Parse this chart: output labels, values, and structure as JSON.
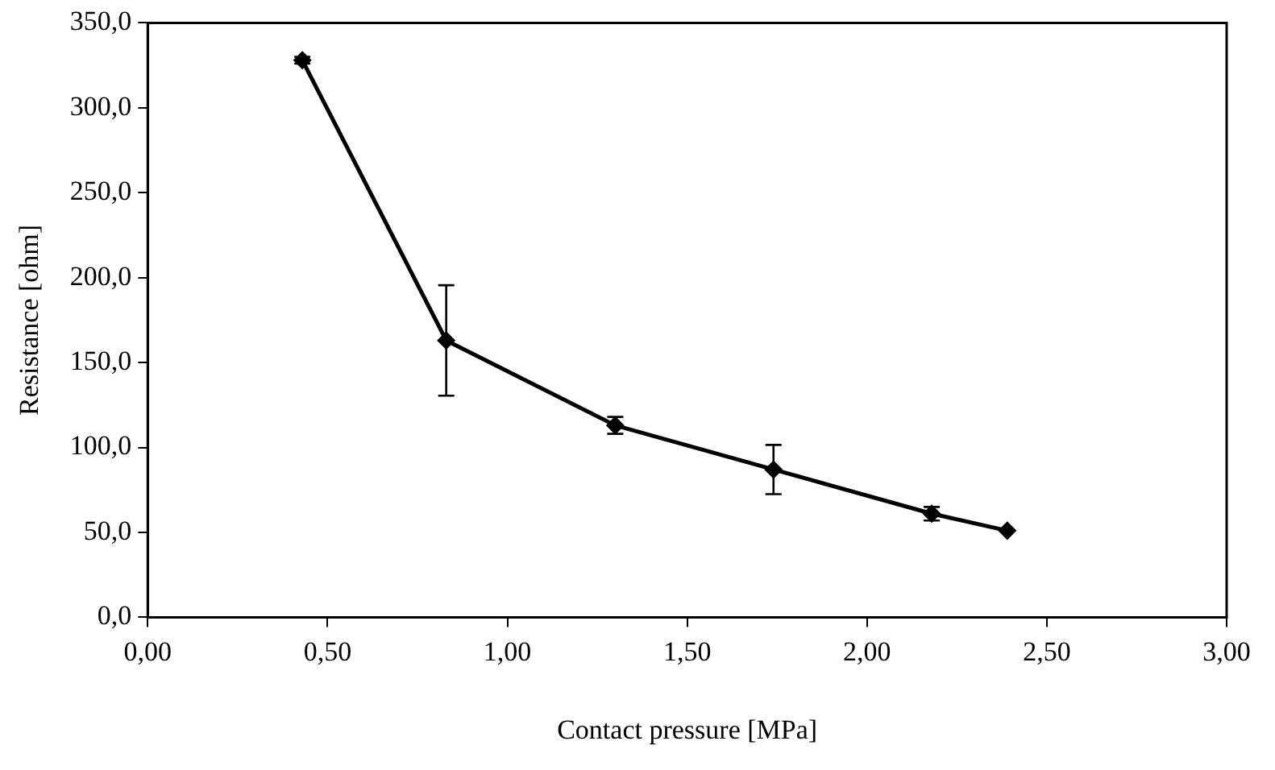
{
  "chart_data": {
    "type": "line",
    "xlabel": "Contact pressure [MPa]",
    "ylabel": "Resistance [ohm]",
    "x": [
      0.43,
      0.83,
      1.3,
      1.74,
      2.18,
      2.39
    ],
    "series": [
      {
        "color": "#000000",
        "values": [
          328,
          163,
          113,
          87,
          61,
          51
        ],
        "errors": [
          2,
          32.5,
          5,
          14.5,
          4,
          null
        ]
      }
    ],
    "xlim": [
      0,
      3
    ],
    "xticks": [
      {
        "value": 0,
        "label": "0,00"
      },
      {
        "value": 0.5,
        "label": "0,50"
      },
      {
        "value": 1,
        "label": "1,00"
      },
      {
        "value": 1.5,
        "label": "1,50"
      },
      {
        "value": 2,
        "label": "2,00"
      },
      {
        "value": 2.5,
        "label": "2,50"
      },
      {
        "value": 3,
        "label": "3,00"
      }
    ],
    "ylim": [
      0,
      350
    ],
    "yticks": [
      {
        "value": 0,
        "label": "0,0"
      },
      {
        "value": 50,
        "label": "50,0"
      },
      {
        "value": 100,
        "label": "100,0"
      },
      {
        "value": 150,
        "label": "150,0"
      },
      {
        "value": 200,
        "label": "200,0"
      },
      {
        "value": 250,
        "label": "250,0"
      },
      {
        "value": 300,
        "label": "300,0"
      },
      {
        "value": 350,
        "label": "350,0"
      }
    ],
    "grid": false,
    "legend": false,
    "marker": "diamond",
    "line_style": "solid"
  }
}
